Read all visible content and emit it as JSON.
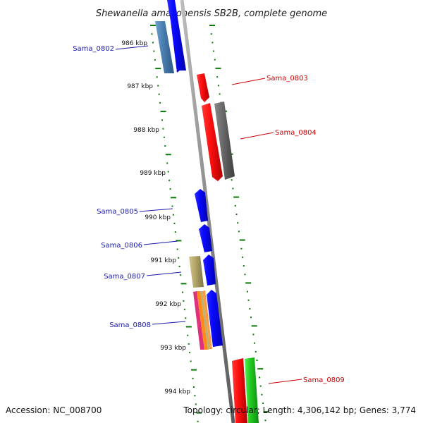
{
  "title": "Shewanella amazonensis SB2B, complete genome",
  "footer": {
    "accession": "Accession: NC_008700",
    "topology": "Topology: circular; Length: 4,306,142 bp; Genes: 3,774"
  },
  "ruler": {
    "labels": [
      "986 kbp",
      "987 kbp",
      "988 kbp",
      "989 kbp",
      "990 kbp",
      "991 kbp",
      "992 kbp",
      "993 kbp",
      "994 kbp"
    ]
  },
  "genes": [
    {
      "id": "Sama_0802",
      "strand": "forward",
      "color": "#0000ee",
      "label_color": "#1a1aa8"
    },
    {
      "id": "Sama_0803",
      "strand": "reverse",
      "color": "#ff1111",
      "label_color": "#cc0000"
    },
    {
      "id": "Sama_0804",
      "strand": "reverse",
      "color": "#ff1111",
      "label_color": "#cc0000"
    },
    {
      "id": "Sama_0805",
      "strand": "forward",
      "color": "#0000ee",
      "label_color": "#1a1aa8"
    },
    {
      "id": "Sama_0806",
      "strand": "forward",
      "color": "#0000ee",
      "label_color": "#1a1aa8"
    },
    {
      "id": "Sama_0807",
      "strand": "forward",
      "color": "#0000ee",
      "label_color": "#1a1aa8"
    },
    {
      "id": "Sama_0808",
      "strand": "forward",
      "color": "#0000ee",
      "label_color": "#1a1aa8"
    },
    {
      "id": "Sama_0809",
      "strand": "reverse",
      "color": "#ff1111",
      "label_color": "#cc0000"
    }
  ],
  "colors": {
    "backbone": "#888888",
    "tick": "#0a7a0a",
    "forward_gene": "#0000ee",
    "reverse_gene": "#ff1111",
    "cog_dark_gray": "#666666",
    "cog_steel_blue": "#4a7fb0",
    "cog_olive": "#b5a86a",
    "cog_green": "#22cc22",
    "cog_magenta": "#e0307a",
    "cog_orange": "#ff8c1a"
  }
}
